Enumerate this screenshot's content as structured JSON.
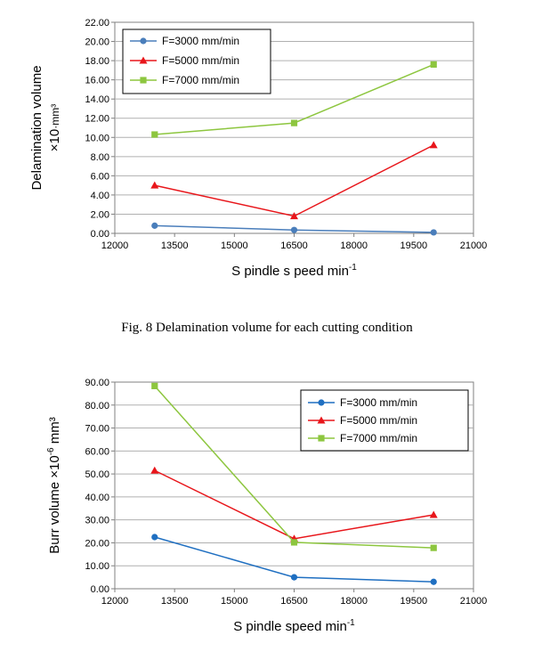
{
  "chart_data": [
    {
      "type": "line",
      "title": "",
      "xlabel": "S pindle s peed min",
      "xlabel_sup": "-1",
      "ylabel_line1": "Delamination volume",
      "ylabel_line2": "×10",
      "ylabel_line2_unit": "·mm³",
      "xlim": [
        12000,
        21000
      ],
      "ylim": [
        0,
        22
      ],
      "xticks": [
        "12000",
        "13500",
        "15000",
        "16500",
        "18000",
        "19500",
        "21000"
      ],
      "yticks": [
        "0.00",
        "2.00",
        "4.00",
        "6.00",
        "8.00",
        "10.00",
        "12.00",
        "14.00",
        "16.00",
        "18.00",
        "20.00",
        "22.00"
      ],
      "x": [
        13000,
        16500,
        20000
      ],
      "series": [
        {
          "name": "F=3000 mm/min",
          "color": "#4a7ebb",
          "marker": "circle",
          "values": [
            0.8,
            0.35,
            0.1
          ]
        },
        {
          "name": "F=5000 mm/min",
          "color": "#e8161b",
          "marker": "triangle",
          "values": [
            5.0,
            1.8,
            9.2
          ]
        },
        {
          "name": "F=7000 mm/min",
          "color": "#8dc63f",
          "marker": "square",
          "values": [
            10.3,
            11.5,
            17.6
          ]
        }
      ]
    },
    {
      "type": "line",
      "title": "",
      "xlabel": "S pindle speed min",
      "xlabel_sup": "-1",
      "ylabel": "Burr volume ×10",
      "ylabel_sup": "-6",
      "ylabel_unit": " mm³",
      "xlim": [
        12000,
        21000
      ],
      "ylim": [
        0,
        90
      ],
      "xticks": [
        "12000",
        "13500",
        "15000",
        "16500",
        "18000",
        "19500",
        "21000"
      ],
      "yticks": [
        "0.00",
        "10.00",
        "20.00",
        "30.00",
        "40.00",
        "50.00",
        "60.00",
        "70.00",
        "80.00",
        "90.00"
      ],
      "x": [
        13000,
        16500,
        20000
      ],
      "series": [
        {
          "name": "F=3000 mm/min",
          "color": "#1f6fc1",
          "marker": "circle",
          "values": [
            22.5,
            5.0,
            3.0
          ]
        },
        {
          "name": "F=5000 mm/min",
          "color": "#e8161b",
          "marker": "triangle",
          "values": [
            51.5,
            21.8,
            32.2
          ]
        },
        {
          "name": "F=7000 mm/min",
          "color": "#8dc63f",
          "marker": "square",
          "values": [
            88.3,
            20.2,
            17.8
          ]
        }
      ]
    }
  ],
  "caption": "Fig. 8 Delamination volume for each cutting condition"
}
